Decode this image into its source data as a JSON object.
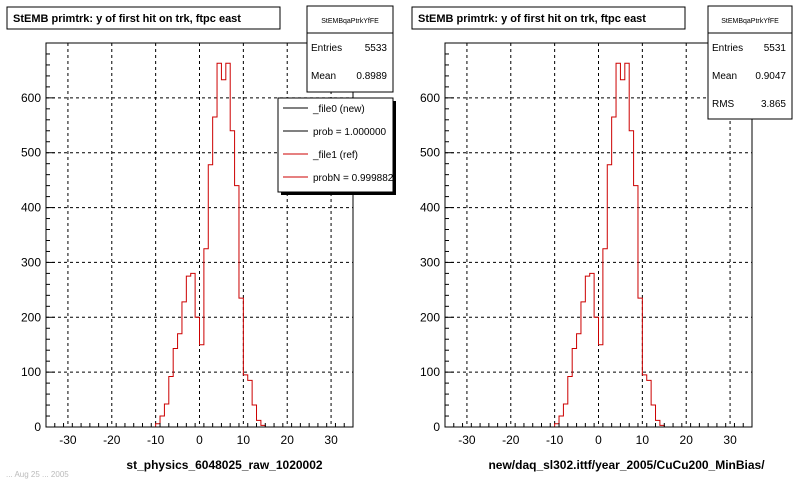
{
  "footer_text": "... Aug 25 ... 2005",
  "chart_data": [
    {
      "type": "histogram",
      "title": "StEMB primtrk: y of first hit on trk, ftpc east",
      "xlabel": "st_physics_6048025_raw_1020002",
      "ylabel": "",
      "xlim": [
        -35,
        35
      ],
      "ylim": [
        0,
        700
      ],
      "xticks": [
        -30,
        -20,
        -10,
        0,
        10,
        20,
        30
      ],
      "yticks": [
        0,
        100,
        200,
        300,
        400,
        500,
        600
      ],
      "grid": true,
      "stats": {
        "name": "StEMBqaPtrkYfFE",
        "rows": [
          {
            "label": "Entries",
            "value": "5533"
          },
          {
            "label": "Mean",
            "value": "0.8989"
          }
        ]
      },
      "legend": {
        "position": "top-right",
        "entries": [
          {
            "label": "_file0 (new)",
            "color": "#000000"
          },
          {
            "label": "prob = 1.000000",
            "color": "#000000"
          },
          {
            "label": "_file1 (ref)",
            "color": "#cc0000"
          },
          {
            "label": "probN = 0.999882",
            "color": "#cc0000"
          }
        ]
      },
      "series": [
        {
          "color": "#cc0000",
          "bin_edges_start": -35,
          "bin_width": 1,
          "values": [
            0,
            0,
            0,
            0,
            0,
            0,
            0,
            0,
            0,
            0,
            0,
            0,
            0,
            0,
            0,
            0,
            0,
            0,
            0,
            0,
            0,
            0,
            0,
            0,
            0,
            0,
            0,
            0,
            0,
            0,
            0,
            0,
            0,
            0,
            0,
            0,
            0,
            0,
            0,
            0,
            0,
            0,
            0,
            0,
            0,
            0,
            0,
            0,
            0,
            0,
            0,
            0,
            0,
            0,
            0,
            0,
            0,
            0,
            0,
            0,
            0,
            0,
            0,
            0,
            0,
            0,
            0,
            0,
            0,
            0
          ],
          "hist_values": [
            0,
            0,
            0,
            0,
            0,
            0,
            0,
            0,
            0,
            0,
            0,
            0,
            0,
            0,
            0,
            0,
            0,
            0,
            0,
            0,
            0,
            0,
            0,
            0,
            0,
            6,
            20,
            42,
            92,
            143,
            170,
            228,
            275,
            280,
            200,
            150,
            325,
            478,
            565,
            663,
            633,
            663,
            540,
            440,
            235,
            95,
            85,
            40,
            12,
            3,
            0,
            0,
            0,
            0,
            0,
            0,
            0,
            0,
            0,
            0,
            0,
            0,
            0,
            0,
            0,
            0,
            0,
            0,
            0,
            0
          ]
        }
      ]
    },
    {
      "type": "histogram",
      "title": "StEMB primtrk: y of first hit on trk, ftpc east",
      "xlabel": "new/daq_sl302.ittf/year_2005/CuCu200_MinBias/",
      "ylabel": "",
      "xlim": [
        -35,
        35
      ],
      "ylim": [
        0,
        700
      ],
      "xticks": [
        -30,
        -20,
        -10,
        0,
        10,
        20,
        30
      ],
      "yticks": [
        0,
        100,
        200,
        300,
        400,
        500,
        600
      ],
      "grid": true,
      "stats": {
        "name": "StEMBqaPtrkYfFE",
        "rows": [
          {
            "label": "Entries",
            "value": "5531"
          },
          {
            "label": "Mean",
            "value": "0.9047"
          },
          {
            "label": "RMS",
            "value": "3.865"
          }
        ]
      },
      "series": [
        {
          "color": "#cc0000",
          "bin_edges_start": -35,
          "bin_width": 1,
          "hist_values": [
            0,
            0,
            0,
            0,
            0,
            0,
            0,
            0,
            0,
            0,
            0,
            0,
            0,
            0,
            0,
            0,
            0,
            0,
            0,
            0,
            0,
            0,
            0,
            0,
            0,
            6,
            20,
            42,
            92,
            143,
            170,
            228,
            275,
            280,
            200,
            150,
            325,
            478,
            565,
            663,
            633,
            663,
            540,
            440,
            235,
            95,
            85,
            40,
            12,
            3,
            0,
            0,
            0,
            0,
            0,
            0,
            0,
            0,
            0,
            0,
            0,
            0,
            0,
            0,
            0,
            0,
            0,
            0,
            0,
            0
          ]
        }
      ]
    }
  ]
}
